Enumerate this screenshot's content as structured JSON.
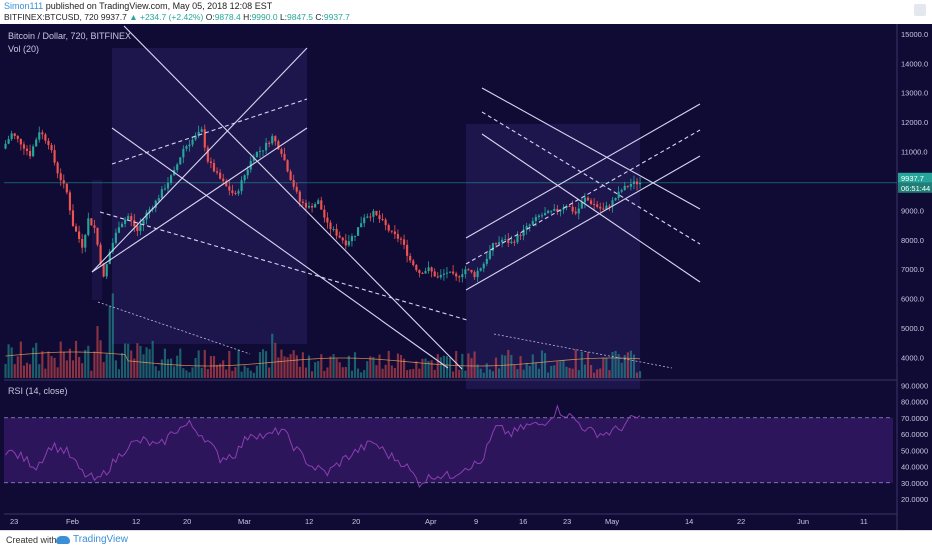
{
  "header": {
    "author": "Simon111",
    "published": "published on TradingView.com, May 05, 2018 12:08 EST",
    "symbol_line": "BITFINEX:BTCUSD, 720",
    "last": "9937.7",
    "change": "▲ +234.7 (+2.42%)",
    "o_label": "O:",
    "o": "9878.4",
    "h_label": "H:",
    "h": "9990.0",
    "l_label": "L:",
    "l": "9847.5",
    "c_label": "C:",
    "c": "9937.7"
  },
  "footer": {
    "created_with": "Created with",
    "brand": "TradingView"
  },
  "colors": {
    "background": "#0f0b35",
    "up": "#26a69a",
    "down": "#ef5350",
    "channel": "#d8d4f0",
    "rsi": "#8a3fb0",
    "rsi_band": "#3a1a6e",
    "ma": "#f2a35a",
    "price_tag": "#26a69a"
  },
  "chart_data": {
    "type": "candlestick",
    "title": "Bitcoin / Dollar, 720, BITFINEX",
    "volume_label": "Vol (20)",
    "rsi_label": "RSI (14, close)",
    "price_axis": {
      "min": 3300,
      "max": 15200,
      "ticks": [
        "15000.0",
        "14000.0",
        "13000.0",
        "12000.0",
        "11000.0",
        "10000.0",
        "9000.0",
        "8000.0",
        "7000.0",
        "6000.0",
        "5000.0",
        "4000.0"
      ]
    },
    "rsi_axis": {
      "min": 12,
      "max": 92,
      "ticks": [
        "90.0000",
        "80.0000",
        "70.0000",
        "60.0000",
        "50.0000",
        "40.0000",
        "30.0000",
        "20.0000"
      ],
      "overbought": 70,
      "oversold": 30
    },
    "time_axis": [
      "23",
      "Feb",
      "12",
      "20",
      "Mar",
      "12",
      "20",
      "Apr",
      "9",
      "16",
      "23",
      "May",
      "14",
      "22",
      "Jun",
      "11"
    ],
    "last_price_label": "9937.7",
    "countdown_label": "06:51:44",
    "last_price": 9937.7,
    "price_path": [
      [
        0,
        11100
      ],
      [
        3,
        11600
      ],
      [
        6,
        11300
      ],
      [
        9,
        10900
      ],
      [
        12,
        11700
      ],
      [
        15,
        11300
      ],
      [
        18,
        10300
      ],
      [
        21,
        9600
      ],
      [
        23,
        8500
      ],
      [
        26,
        7800
      ],
      [
        28,
        8700
      ],
      [
        30,
        8400
      ],
      [
        33,
        6700
      ],
      [
        35,
        7600
      ],
      [
        38,
        8500
      ],
      [
        41,
        8800
      ],
      [
        44,
        8300
      ],
      [
        47,
        8900
      ],
      [
        50,
        9300
      ],
      [
        53,
        9800
      ],
      [
        56,
        10300
      ],
      [
        59,
        11100
      ],
      [
        62,
        11400
      ],
      [
        65,
        11700
      ],
      [
        67,
        10700
      ],
      [
        70,
        10200
      ],
      [
        73,
        9800
      ],
      [
        76,
        9500
      ],
      [
        79,
        10200
      ],
      [
        82,
        10900
      ],
      [
        85,
        11100
      ],
      [
        88,
        11500
      ],
      [
        91,
        11000
      ],
      [
        94,
        10100
      ],
      [
        97,
        9300
      ],
      [
        100,
        9100
      ],
      [
        103,
        9300
      ],
      [
        106,
        8500
      ],
      [
        109,
        8200
      ],
      [
        112,
        7900
      ],
      [
        115,
        8200
      ],
      [
        118,
        8800
      ],
      [
        121,
        8900
      ],
      [
        124,
        8600
      ],
      [
        127,
        8200
      ],
      [
        130,
        8000
      ],
      [
        133,
        7300
      ],
      [
        136,
        6900
      ],
      [
        139,
        7000
      ],
      [
        142,
        6700
      ],
      [
        145,
        6900
      ],
      [
        148,
        6700
      ],
      [
        151,
        7000
      ],
      [
        154,
        6800
      ],
      [
        157,
        7200
      ],
      [
        160,
        7800
      ],
      [
        163,
        8000
      ],
      [
        166,
        7900
      ],
      [
        169,
        8200
      ],
      [
        172,
        8500
      ],
      [
        175,
        8800
      ],
      [
        178,
        8900
      ],
      [
        181,
        9000
      ],
      [
        184,
        9200
      ],
      [
        187,
        8900
      ],
      [
        190,
        9400
      ],
      [
        193,
        9200
      ],
      [
        196,
        9000
      ],
      [
        199,
        9300
      ],
      [
        202,
        9700
      ],
      [
        205,
        9900
      ],
      [
        207,
        9937.7
      ]
    ],
    "rsi_path": [
      [
        0,
        50
      ],
      [
        5,
        46
      ],
      [
        10,
        40
      ],
      [
        15,
        53
      ],
      [
        20,
        49
      ],
      [
        25,
        36
      ],
      [
        30,
        31
      ],
      [
        35,
        42
      ],
      [
        40,
        53
      ],
      [
        45,
        56
      ],
      [
        50,
        52
      ],
      [
        55,
        62
      ],
      [
        60,
        66
      ],
      [
        65,
        58
      ],
      [
        70,
        45
      ],
      [
        75,
        48
      ],
      [
        80,
        61
      ],
      [
        85,
        58
      ],
      [
        90,
        63
      ],
      [
        95,
        50
      ],
      [
        100,
        40
      ],
      [
        105,
        36
      ],
      [
        110,
        44
      ],
      [
        115,
        50
      ],
      [
        120,
        55
      ],
      [
        125,
        47
      ],
      [
        130,
        42
      ],
      [
        135,
        30
      ],
      [
        140,
        35
      ],
      [
        145,
        34
      ],
      [
        150,
        40
      ],
      [
        155,
        42
      ],
      [
        160,
        64
      ],
      [
        165,
        60
      ],
      [
        170,
        65
      ],
      [
        175,
        66
      ],
      [
        180,
        75
      ],
      [
        185,
        70
      ],
      [
        190,
        62
      ],
      [
        195,
        60
      ],
      [
        200,
        63
      ],
      [
        205,
        70
      ]
    ],
    "bar_count": 208,
    "bars_on_axis": 290
  }
}
